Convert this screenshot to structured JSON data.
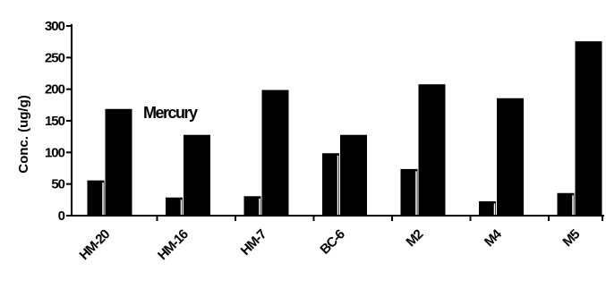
{
  "chart_data": {
    "type": "bar",
    "title": "",
    "xlabel": "",
    "ylabel": "Conc. (ug/g)",
    "ylim": [
      0,
      300
    ],
    "yticks": [
      0,
      50,
      100,
      150,
      200,
      250,
      300
    ],
    "ytick_labels": [
      "0",
      "50",
      "100",
      "150",
      "200",
      "250",
      "300"
    ],
    "categories": [
      "HM-20",
      "HM-16",
      "HM-7",
      "BC-6",
      "M2",
      "M4",
      "M5"
    ],
    "series": [
      {
        "values": [
          55,
          28,
          30,
          98,
          73,
          22,
          35
        ],
        "color": "#000000"
      },
      {
        "values": [
          168,
          127,
          198,
          127,
          207,
          185,
          275
        ],
        "color": "#000000"
      }
    ],
    "annotations": [
      {
        "text": "Mercury",
        "near_category": "HM-16"
      }
    ],
    "grid": false,
    "legend": "none"
  }
}
